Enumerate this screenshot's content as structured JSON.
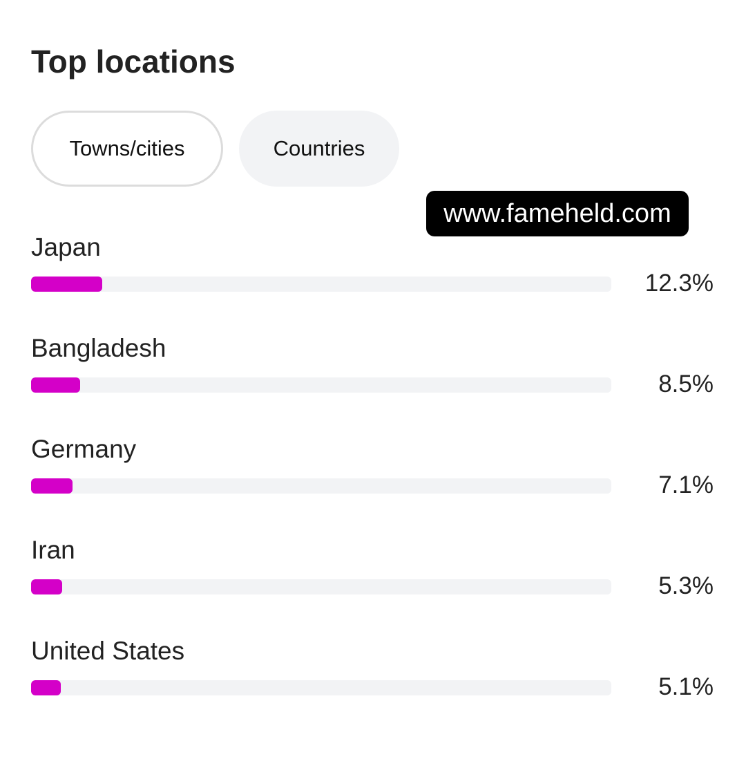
{
  "title": "Top locations",
  "tabs": [
    {
      "label": "Towns/cities",
      "selected": false
    },
    {
      "label": "Countries",
      "selected": true
    }
  ],
  "watermark": "www.fameheld.com",
  "bar_color": "#d400c8",
  "locations": [
    {
      "name": "Japan",
      "percent_label": "12.3%",
      "percent": 12.3
    },
    {
      "name": "Bangladesh",
      "percent_label": "8.5%",
      "percent": 8.5
    },
    {
      "name": "Germany",
      "percent_label": "7.1%",
      "percent": 7.1
    },
    {
      "name": "Iran",
      "percent_label": "5.3%",
      "percent": 5.3
    },
    {
      "name": "United States",
      "percent_label": "5.1%",
      "percent": 5.1
    }
  ]
}
